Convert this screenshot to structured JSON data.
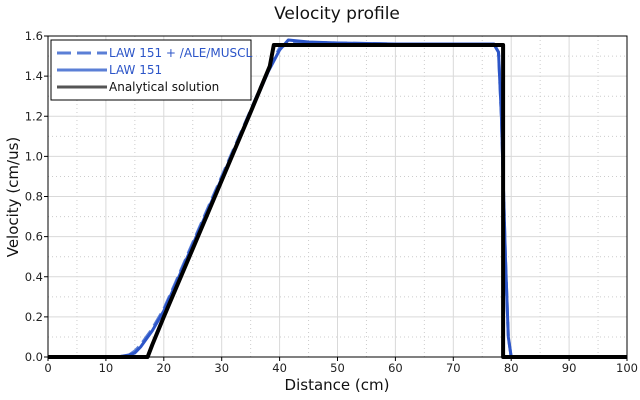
{
  "chart_data": {
    "type": "line",
    "title": "Velocity profile",
    "xlabel": "Distance (cm)",
    "ylabel": "Velocity (cm/us)",
    "xlim": [
      0,
      100
    ],
    "ylim": [
      0,
      1.6
    ],
    "xticks": [
      0,
      10,
      20,
      30,
      40,
      50,
      60,
      70,
      80,
      90,
      100
    ],
    "xtick_labels": [
      "0",
      "10",
      "20",
      "30",
      "40",
      "50",
      "60",
      "70",
      "80",
      "90",
      "100"
    ],
    "yticks": [
      0,
      0.2,
      0.4,
      0.6,
      0.8,
      1.0,
      1.2,
      1.4,
      1.6
    ],
    "ytick_labels": [
      "0.0",
      "0.2",
      "0.4",
      "0.6",
      "0.8",
      "1.0",
      "1.2",
      "1.4",
      "1.6"
    ],
    "grid": true,
    "legend_position": "top-left",
    "series": [
      {
        "name": "LAW 151 + /ALE/MUSCL",
        "color": "#5b7fd6",
        "style": "dashed",
        "x": [
          0,
          12,
          14,
          15,
          16,
          17,
          18,
          19,
          20,
          22,
          25,
          30,
          35,
          38,
          40,
          42,
          50,
          60,
          70,
          77,
          77.8,
          78.3,
          79,
          79.5,
          80,
          100
        ],
        "y": [
          0,
          0,
          0.01,
          0.03,
          0.06,
          0.1,
          0.14,
          0.19,
          0.24,
          0.37,
          0.57,
          0.9,
          1.23,
          1.43,
          1.54,
          1.57,
          1.565,
          1.56,
          1.56,
          1.56,
          1.52,
          1.2,
          0.5,
          0.1,
          0,
          0
        ]
      },
      {
        "name": "LAW 151",
        "color": "#2c55c8",
        "style": "solid",
        "x": [
          0,
          12,
          14,
          15,
          16,
          17,
          18,
          19,
          20,
          22,
          25,
          30,
          35,
          38,
          40,
          41.5,
          45,
          50,
          60,
          70,
          77,
          77.8,
          78.3,
          79,
          79.5,
          80,
          100
        ],
        "y": [
          0,
          0,
          0.01,
          0.02,
          0.05,
          0.09,
          0.13,
          0.18,
          0.23,
          0.36,
          0.56,
          0.89,
          1.22,
          1.42,
          1.53,
          1.58,
          1.57,
          1.565,
          1.56,
          1.56,
          1.56,
          1.52,
          1.2,
          0.5,
          0.1,
          0,
          0
        ]
      },
      {
        "name": "Analytical solution",
        "color": "#000000",
        "style": "solid",
        "x": [
          0,
          17.2,
          18,
          20,
          25,
          30,
          35,
          38.3,
          39,
          78.6,
          78.6,
          100
        ],
        "y": [
          0,
          0,
          0.06,
          0.2,
          0.54,
          0.88,
          1.22,
          1.45,
          1.555,
          1.555,
          0,
          0
        ]
      }
    ]
  }
}
